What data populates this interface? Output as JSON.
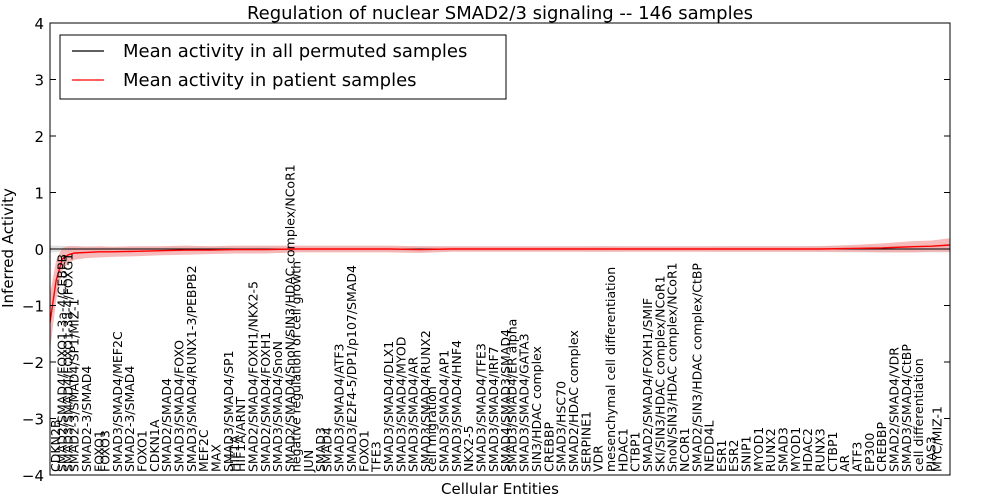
{
  "chart_data": {
    "type": "line",
    "title": "Regulation of nuclear SMAD2/3 signaling -- 146 samples",
    "xlabel": "Cellular Entities",
    "ylabel": "Inferred Activity",
    "ylim": [
      -4,
      4
    ],
    "yticks": [
      -4,
      -3,
      -2,
      -1,
      0,
      1,
      2,
      3,
      4
    ],
    "legend_position": "top-left",
    "grid": false,
    "colors": {
      "permuted": "#000000",
      "patient": "#ff0000",
      "patient_band": "#f4a3a3",
      "permuted_band": "#d9d9d9"
    },
    "series": [
      {
        "name": "Mean activity in all permuted samples",
        "color": "#000000",
        "x": [
          0,
          10,
          20,
          30,
          40,
          50,
          60,
          70,
          80,
          90,
          100,
          110,
          120,
          130,
          140,
          146
        ],
        "values": [
          0,
          0,
          0,
          0,
          0,
          0,
          0,
          0,
          0,
          0,
          0,
          0,
          0,
          0,
          0,
          0
        ],
        "band": [
          0.06,
          0.04,
          0.05,
          0.04,
          0.05,
          0.04,
          0.05,
          0.04,
          0.04,
          0.05,
          0.04,
          0.05,
          0.05,
          0.06,
          0.06,
          0.06
        ]
      },
      {
        "name": "Mean activity in patient samples",
        "color": "#ff0000",
        "x": [
          0,
          1,
          2,
          3,
          4,
          6,
          8,
          10,
          14,
          18,
          22,
          26,
          30,
          35,
          40,
          45,
          50,
          55,
          60,
          65,
          70,
          75,
          80,
          85,
          90,
          95,
          100,
          105,
          110,
          115,
          120,
          125,
          130,
          135,
          140,
          143,
          146
        ],
        "values": [
          -1.3,
          -0.55,
          -0.18,
          -0.1,
          -0.07,
          -0.06,
          -0.05,
          -0.05,
          -0.04,
          -0.03,
          -0.02,
          -0.02,
          -0.01,
          -0.01,
          0.0,
          0.0,
          0.0,
          0.0,
          -0.01,
          0.0,
          0.0,
          0.0,
          0.0,
          0.0,
          0.0,
          0.0,
          0.0,
          0.0,
          0.0,
          0.0,
          0.0,
          0.0,
          0.01,
          0.02,
          0.04,
          0.05,
          0.07
        ],
        "band": [
          0.5,
          0.35,
          0.2,
          0.15,
          0.12,
          0.1,
          0.1,
          0.09,
          0.09,
          0.08,
          0.08,
          0.07,
          0.07,
          0.07,
          0.06,
          0.06,
          0.06,
          0.06,
          0.06,
          0.05,
          0.05,
          0.05,
          0.05,
          0.05,
          0.05,
          0.05,
          0.05,
          0.05,
          0.05,
          0.05,
          0.05,
          0.05,
          0.06,
          0.08,
          0.1,
          0.1,
          0.12
        ]
      }
    ],
    "x_range": [
      0,
      146
    ],
    "entity_labels": [
      {
        "x": 1,
        "text": "CDKN2B"
      },
      {
        "x": 2,
        "text": "SMAD2/SMAD4/FOXO1-3a-4/CEBPB"
      },
      {
        "x": 3,
        "text": "SMAD3/SMAD4/FOXO1-3a-4/FOXG1"
      },
      {
        "x": 4,
        "text": "SMAD2-3/SMAD4/SP1/MIZ-1"
      },
      {
        "x": 6,
        "text": "SMAD2-3/SMAD4"
      },
      {
        "x": 8,
        "text": "FOXO1"
      },
      {
        "x": 9,
        "text": "FOXO3"
      },
      {
        "x": 11,
        "text": "SMAD3/SMAD4/MEF2C"
      },
      {
        "x": 13,
        "text": "SMAD2-3/SMAD4"
      },
      {
        "x": 15,
        "text": "FOXO1"
      },
      {
        "x": 17,
        "text": "CDKN1A"
      },
      {
        "x": 19,
        "text": "SMAD2/SMAD4"
      },
      {
        "x": 21,
        "text": "SMAD3/SMAD4/FOXO"
      },
      {
        "x": 23,
        "text": "SMAD3/SMAD4/RUNX1-3/PEBPB2"
      },
      {
        "x": 25,
        "text": "MEF2C"
      },
      {
        "x": 27,
        "text": "MAX"
      },
      {
        "x": 29,
        "text": "SMAD3/SMAD4/SP1"
      },
      {
        "x": 30,
        "text": "HIF1A"
      },
      {
        "x": 31,
        "text": "HIF1A/ARNT"
      },
      {
        "x": 33,
        "text": "SMAD2/SMAD4/FOXH1/NKX2-5"
      },
      {
        "x": 35,
        "text": "SMAD2/SMAD4/FOXH1"
      },
      {
        "x": 37,
        "text": "SMAD3/SMAD4/SnoN"
      },
      {
        "x": 39,
        "text": "SMAD2/SMAD4/SnoN/SIN3/HDAC complex/NCoR1"
      },
      {
        "x": 40,
        "text": "negative regulation of cell growth"
      },
      {
        "x": 42,
        "text": "JUN"
      },
      {
        "x": 44,
        "text": "SMAD3"
      },
      {
        "x": 45,
        "text": "SMAD4"
      },
      {
        "x": 47,
        "text": "SMAD3/SMAD4/ATF3"
      },
      {
        "x": 49,
        "text": "SMAD3/E2F4-5/DP1/p107/SMAD4"
      },
      {
        "x": 51,
        "text": "FOXO1"
      },
      {
        "x": 53,
        "text": "TFE3"
      },
      {
        "x": 55,
        "text": "SMAD3/SMAD4/DLX1"
      },
      {
        "x": 57,
        "text": "SMAD3/SMAD4/MYOD"
      },
      {
        "x": 59,
        "text": "SMAD3/SMAD4/AR"
      },
      {
        "x": 61,
        "text": "SMAD3/SMAD4/RUNX2"
      },
      {
        "x": 62,
        "text": "cell migration"
      },
      {
        "x": 64,
        "text": "SMAD3/SMAD4/AP1"
      },
      {
        "x": 66,
        "text": "SMAD3/SMAD4/HNF4"
      },
      {
        "x": 68,
        "text": "NKX2-5"
      },
      {
        "x": 70,
        "text": "SMAD3/SMAD4/TFE3"
      },
      {
        "x": 72,
        "text": "SMAD3/SMAD4/IRF7"
      },
      {
        "x": 74,
        "text": "SMAD4/SMAD3/SMAD4"
      },
      {
        "x": 75,
        "text": "SMAD3/SMAD4/ER alpha"
      },
      {
        "x": 77,
        "text": "SMAD3/SMAD4/GATA3"
      },
      {
        "x": 79,
        "text": "SIN3/HDAC complex"
      },
      {
        "x": 81,
        "text": "CREBBP"
      },
      {
        "x": 83,
        "text": "SMAD3/HSC70"
      },
      {
        "x": 85,
        "text": "SMAD2/HDAC complex"
      },
      {
        "x": 87,
        "text": "SERPINE1"
      },
      {
        "x": 89,
        "text": "VDR"
      },
      {
        "x": 91,
        "text": "mesenchymal cell differentiation"
      },
      {
        "x": 93,
        "text": "HDAC1"
      },
      {
        "x": 95,
        "text": "CTBP1"
      },
      {
        "x": 97,
        "text": "SMAD2/SMAD4/FOXH1/SMIF"
      },
      {
        "x": 99,
        "text": "SKI/SIN3/HDAC complex/NCoR1"
      },
      {
        "x": 101,
        "text": "SnoN/SIN3/HDAC complex/NCoR1"
      },
      {
        "x": 103,
        "text": "NCOR1"
      },
      {
        "x": 105,
        "text": "SMAD2/SIN3/HDAC complex/CtBP"
      },
      {
        "x": 107,
        "text": "NEDD4L"
      },
      {
        "x": 109,
        "text": "ESR1"
      },
      {
        "x": 111,
        "text": "ESR2"
      },
      {
        "x": 113,
        "text": "SNIP1"
      },
      {
        "x": 115,
        "text": "MYOD1"
      },
      {
        "x": 117,
        "text": "RUNX2"
      },
      {
        "x": 119,
        "text": "SMAD3"
      },
      {
        "x": 121,
        "text": "MYOD1"
      },
      {
        "x": 123,
        "text": "HDAC2"
      },
      {
        "x": 125,
        "text": "RUNX3"
      },
      {
        "x": 127,
        "text": "CTBP1"
      },
      {
        "x": 129,
        "text": "AR"
      },
      {
        "x": 131,
        "text": "ATF3"
      },
      {
        "x": 133,
        "text": "EP300"
      },
      {
        "x": 135,
        "text": "CREBBP"
      },
      {
        "x": 137,
        "text": "SMAD2/SMAD4/VDR"
      },
      {
        "x": 139,
        "text": "SMAD3/SMAD4/CtBP"
      },
      {
        "x": 141,
        "text": "cell differentiation"
      },
      {
        "x": 143,
        "text": "PIAS3"
      },
      {
        "x": 144,
        "text": "MYC/MIZ-1"
      }
    ]
  }
}
